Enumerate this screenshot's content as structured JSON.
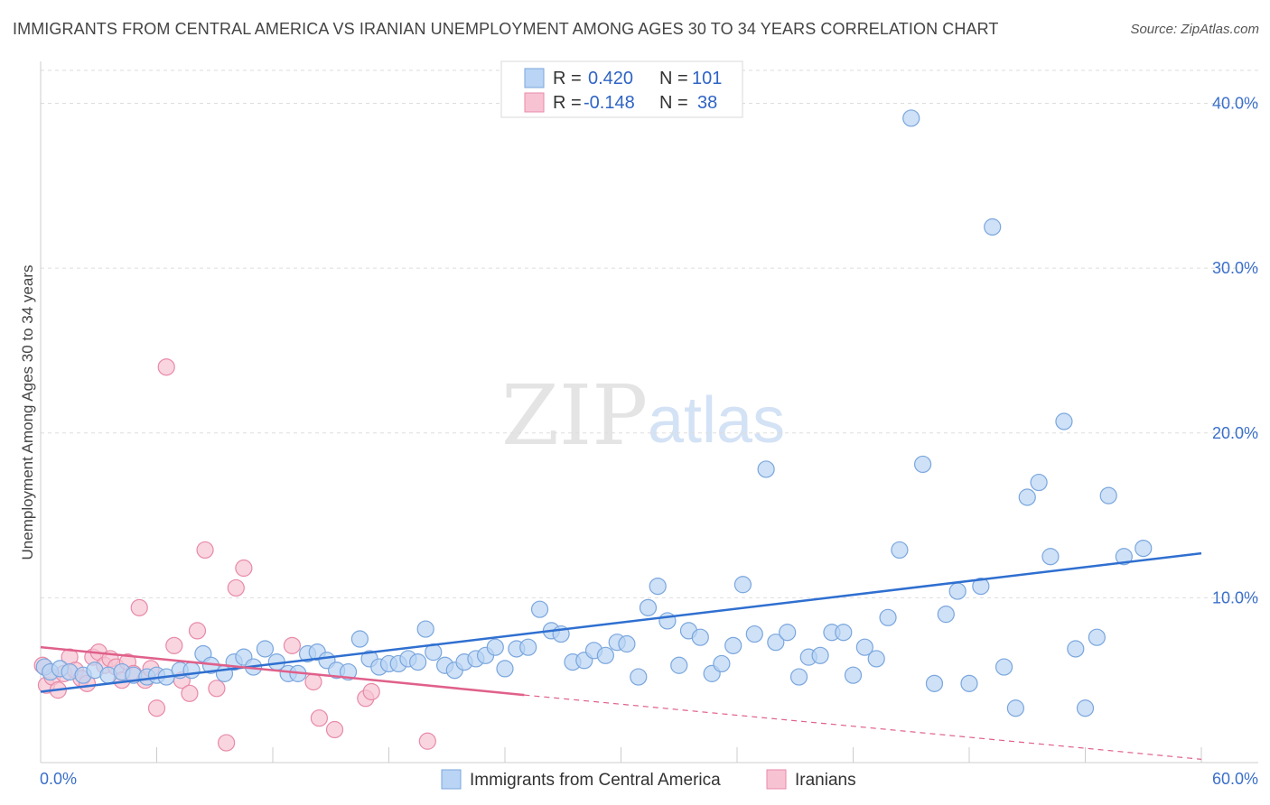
{
  "header": {
    "title": "IMMIGRANTS FROM CENTRAL AMERICA VS IRANIAN UNEMPLOYMENT AMONG AGES 30 TO 34 YEARS CORRELATION CHART",
    "source": "Source: ZipAtlas.com"
  },
  "watermark": {
    "zip": "ZIP",
    "atlas": "atlas"
  },
  "legend": {
    "rows": [
      {
        "r_label": "R =",
        "r_value": "0.420",
        "n_label": "N =",
        "n_value": "101",
        "color": "#a9c8f0"
      },
      {
        "r_label": "R =",
        "r_value": "-0.148",
        "n_label": "N =",
        "n_value": "38",
        "color": "#f5b8cb"
      }
    ]
  },
  "colors": {
    "blue_fill": "#b9d4f4",
    "blue_stroke": "#7aa6dd",
    "blue_line": "#2f6fd0",
    "pink_fill": "#f7c3d3",
    "pink_stroke": "#e88aa8",
    "pink_line": "#e0608a",
    "grid": "#dddddd",
    "axis_text": "#3a6fc9"
  },
  "chart_data": {
    "type": "scatter",
    "title": "IMMIGRANTS FROM CENTRAL AMERICA VS IRANIAN UNEMPLOYMENT AMONG AGES 30 TO 34 YEARS CORRELATION CHART",
    "xlabel": "",
    "ylabel": "Unemployment Among Ages 30 to 34 years",
    "xlim": [
      0,
      60
    ],
    "ylim": [
      0,
      42
    ],
    "x_tick_labels": [
      "0.0%",
      "60.0%"
    ],
    "y_ticks": [
      10,
      20,
      30,
      40
    ],
    "y_tick_labels": [
      "10.0%",
      "20.0%",
      "30.0%",
      "40.0%"
    ],
    "grid": true,
    "legend_position": "top-center",
    "series": [
      {
        "name": "Immigrants from Central America",
        "color": "#b9d4f4",
        "trend": {
          "x": [
            0,
            60
          ],
          "y": [
            4.3,
            12.7
          ]
        },
        "points": [
          [
            0.2,
            5.8
          ],
          [
            0.5,
            5.5
          ],
          [
            1.0,
            5.7
          ],
          [
            1.5,
            5.5
          ],
          [
            2.2,
            5.3
          ],
          [
            2.8,
            5.6
          ],
          [
            3.5,
            5.3
          ],
          [
            4.2,
            5.5
          ],
          [
            4.8,
            5.3
          ],
          [
            5.5,
            5.2
          ],
          [
            6.0,
            5.3
          ],
          [
            6.5,
            5.2
          ],
          [
            7.2,
            5.6
          ],
          [
            7.8,
            5.6
          ],
          [
            8.4,
            6.6
          ],
          [
            8.8,
            5.9
          ],
          [
            9.5,
            5.4
          ],
          [
            10.0,
            6.1
          ],
          [
            10.5,
            6.4
          ],
          [
            11.0,
            5.8
          ],
          [
            11.6,
            6.9
          ],
          [
            12.2,
            6.1
          ],
          [
            12.8,
            5.4
          ],
          [
            13.3,
            5.4
          ],
          [
            13.8,
            6.6
          ],
          [
            14.3,
            6.7
          ],
          [
            14.8,
            6.2
          ],
          [
            15.3,
            5.6
          ],
          [
            15.9,
            5.5
          ],
          [
            16.5,
            7.5
          ],
          [
            17.0,
            6.3
          ],
          [
            17.5,
            5.8
          ],
          [
            18.0,
            6.0
          ],
          [
            18.5,
            6.0
          ],
          [
            19.0,
            6.3
          ],
          [
            19.5,
            6.1
          ],
          [
            19.9,
            8.1
          ],
          [
            20.3,
            6.7
          ],
          [
            20.9,
            5.9
          ],
          [
            21.4,
            5.6
          ],
          [
            21.9,
            6.1
          ],
          [
            22.5,
            6.3
          ],
          [
            23.0,
            6.5
          ],
          [
            23.5,
            7.0
          ],
          [
            24.0,
            5.7
          ],
          [
            24.6,
            6.9
          ],
          [
            25.2,
            7.0
          ],
          [
            25.8,
            9.3
          ],
          [
            26.4,
            8.0
          ],
          [
            26.9,
            7.8
          ],
          [
            27.5,
            6.1
          ],
          [
            28.1,
            6.2
          ],
          [
            28.6,
            6.8
          ],
          [
            29.2,
            6.5
          ],
          [
            29.8,
            7.3
          ],
          [
            30.3,
            7.2
          ],
          [
            30.9,
            5.2
          ],
          [
            31.4,
            9.4
          ],
          [
            31.9,
            10.7
          ],
          [
            32.4,
            8.6
          ],
          [
            33.0,
            5.9
          ],
          [
            33.5,
            8.0
          ],
          [
            34.1,
            7.6
          ],
          [
            34.7,
            5.4
          ],
          [
            35.2,
            6.0
          ],
          [
            35.8,
            7.1
          ],
          [
            36.3,
            10.8
          ],
          [
            36.9,
            7.8
          ],
          [
            37.5,
            17.8
          ],
          [
            38.0,
            7.3
          ],
          [
            38.6,
            7.9
          ],
          [
            39.2,
            5.2
          ],
          [
            39.7,
            6.4
          ],
          [
            40.3,
            6.5
          ],
          [
            40.9,
            7.9
          ],
          [
            41.5,
            7.9
          ],
          [
            42.0,
            5.3
          ],
          [
            42.6,
            7.0
          ],
          [
            43.2,
            6.3
          ],
          [
            43.8,
            8.8
          ],
          [
            44.4,
            12.9
          ],
          [
            45.0,
            39.1
          ],
          [
            45.6,
            18.1
          ],
          [
            46.2,
            4.8
          ],
          [
            46.8,
            9.0
          ],
          [
            47.4,
            10.4
          ],
          [
            48.0,
            4.8
          ],
          [
            48.6,
            10.7
          ],
          [
            49.2,
            32.5
          ],
          [
            49.8,
            5.8
          ],
          [
            50.4,
            3.3
          ],
          [
            51.0,
            16.1
          ],
          [
            51.6,
            17.0
          ],
          [
            52.2,
            12.5
          ],
          [
            52.9,
            20.7
          ],
          [
            53.5,
            6.9
          ],
          [
            54.0,
            3.3
          ],
          [
            54.6,
            7.6
          ],
          [
            55.2,
            16.2
          ],
          [
            56.0,
            12.5
          ],
          [
            57.0,
            13.0
          ]
        ]
      },
      {
        "name": "Iranians",
        "color": "#f7c3d3",
        "trend": {
          "x": [
            0,
            25
          ],
          "y": [
            7.0,
            4.1
          ]
        },
        "trend_dashed": {
          "x": [
            25,
            60
          ],
          "y": [
            4.1,
            0.2
          ]
        },
        "points": [
          [
            0.3,
            4.7
          ],
          [
            0.6,
            5.2
          ],
          [
            0.9,
            4.4
          ],
          [
            1.2,
            5.4
          ],
          [
            1.5,
            6.4
          ],
          [
            1.8,
            5.6
          ],
          [
            2.1,
            5.1
          ],
          [
            2.4,
            4.8
          ],
          [
            2.7,
            6.4
          ],
          [
            3.0,
            6.7
          ],
          [
            3.3,
            5.9
          ],
          [
            3.6,
            6.3
          ],
          [
            3.9,
            5.8
          ],
          [
            4.2,
            5.0
          ],
          [
            4.5,
            6.1
          ],
          [
            4.8,
            5.4
          ],
          [
            5.1,
            9.4
          ],
          [
            5.4,
            5.0
          ],
          [
            5.7,
            5.7
          ],
          [
            6.0,
            3.3
          ],
          [
            6.5,
            24.0
          ],
          [
            6.9,
            7.1
          ],
          [
            7.3,
            5.0
          ],
          [
            7.7,
            4.2
          ],
          [
            8.1,
            8.0
          ],
          [
            8.5,
            12.9
          ],
          [
            9.1,
            4.5
          ],
          [
            9.6,
            1.2
          ],
          [
            10.1,
            10.6
          ],
          [
            10.5,
            11.8
          ],
          [
            13.0,
            7.1
          ],
          [
            14.1,
            4.9
          ],
          [
            14.4,
            2.7
          ],
          [
            15.2,
            2.0
          ],
          [
            16.8,
            3.9
          ],
          [
            17.1,
            4.3
          ],
          [
            20.0,
            1.3
          ],
          [
            0.1,
            5.9
          ]
        ]
      }
    ]
  }
}
